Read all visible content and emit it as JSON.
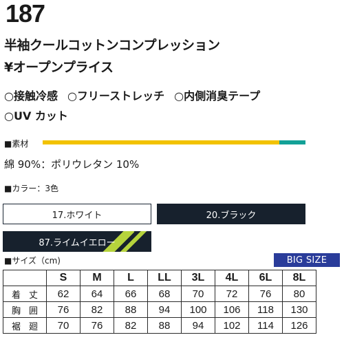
{
  "product": {
    "number": "187",
    "name": "半袖クールコットンコンプレッション",
    "price": "¥オープンプライス"
  },
  "features": [
    "○接触冷感",
    "○フリーストレッチ",
    "○内側消臭テープ",
    "○UV カット"
  ],
  "material": {
    "label": "■素材",
    "composition": "綿 90%：ポリウレタン 10%",
    "bar_colors": {
      "cotton": "#f2c200",
      "polyurethane": "#13a197"
    },
    "shares": {
      "cotton": 0.9,
      "polyurethane": 0.1
    }
  },
  "colors": {
    "label": "■カラー：3色",
    "items": [
      {
        "name": "17.ホワイト",
        "fill": "#ffffff"
      },
      {
        "name": "20.ブラック",
        "fill": "#17212d"
      },
      {
        "name": "87.ライムイエロー",
        "fill": "#17212d",
        "accent": "#b6d33c"
      }
    ]
  },
  "sizes": {
    "label": "■サイズ（cm)",
    "big_size_badge": "BIG SIZE",
    "columns": [
      "S",
      "M",
      "L",
      "LL",
      "3L",
      "4L",
      "6L",
      "8L"
    ],
    "rows": [
      {
        "label": "着丈",
        "values": [
          "62",
          "64",
          "66",
          "68",
          "70",
          "72",
          "76",
          "80"
        ]
      },
      {
        "label": "胸囲",
        "values": [
          "76",
          "82",
          "88",
          "94",
          "100",
          "106",
          "118",
          "130"
        ]
      },
      {
        "label": "裾廻",
        "values": [
          "70",
          "76",
          "82",
          "88",
          "94",
          "102",
          "114",
          "126"
        ]
      }
    ]
  }
}
